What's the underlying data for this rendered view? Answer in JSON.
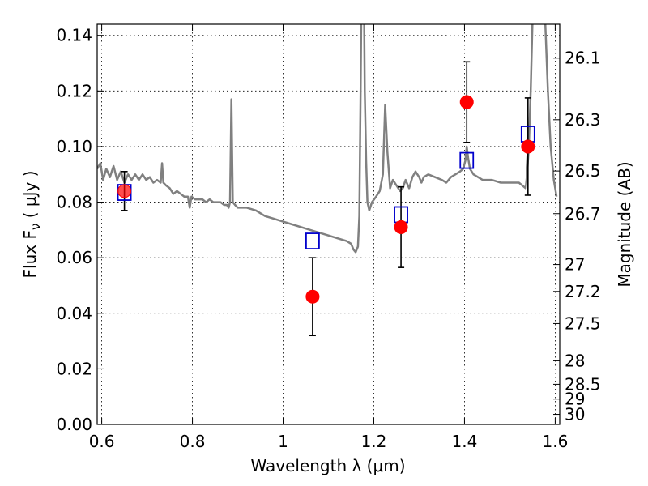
{
  "chart_data": {
    "type": "scatter",
    "xlabel": "Wavelength  λ (μm)",
    "ylabel": "Flux  F",
    "ylabel_sub": "ν",
    "ylabel_unit": "  ( μJy )",
    "y2label": "Magnitude (AB)",
    "xlim": [
      0.59,
      1.61
    ],
    "ylim": [
      0.0,
      0.144
    ],
    "grid": true,
    "x_ticks": [
      {
        "value": 0.6,
        "label": "0.6"
      },
      {
        "value": 0.8,
        "label": "0.8"
      },
      {
        "value": 1.0,
        "label": "1"
      },
      {
        "value": 1.2,
        "label": "1.2"
      },
      {
        "value": 1.4,
        "label": "1.4"
      },
      {
        "value": 1.6,
        "label": "1.6"
      }
    ],
    "y_ticks": [
      {
        "value": 0.0,
        "label": "0.00"
      },
      {
        "value": 0.02,
        "label": "0.02"
      },
      {
        "value": 0.04,
        "label": "0.04"
      },
      {
        "value": 0.06,
        "label": "0.06"
      },
      {
        "value": 0.08,
        "label": "0.08"
      },
      {
        "value": 0.1,
        "label": "0.10"
      },
      {
        "value": 0.12,
        "label": "0.12"
      },
      {
        "value": 0.14,
        "label": "0.14"
      }
    ],
    "y2_ticks": [
      {
        "mag": 26.1,
        "label": "26.1"
      },
      {
        "mag": 26.3,
        "label": "26.3"
      },
      {
        "mag": 26.5,
        "label": "26.5"
      },
      {
        "mag": 26.7,
        "label": "26.7"
      },
      {
        "mag": 27.0,
        "label": "27"
      },
      {
        "mag": 27.2,
        "label": "27.2"
      },
      {
        "mag": 27.5,
        "label": "27.5"
      },
      {
        "mag": 28.0,
        "label": "28"
      },
      {
        "mag": 28.5,
        "label": "28.5"
      },
      {
        "mag": 29.0,
        "label": "29"
      },
      {
        "mag": 30.0,
        "label": "30"
      }
    ],
    "series": [
      {
        "kind": "line",
        "color": "#808080",
        "points": [
          [
            0.59,
            0.092
          ],
          [
            0.597,
            0.094
          ],
          [
            0.603,
            0.088
          ],
          [
            0.61,
            0.092
          ],
          [
            0.618,
            0.089
          ],
          [
            0.626,
            0.093
          ],
          [
            0.634,
            0.088
          ],
          [
            0.642,
            0.091
          ],
          [
            0.65,
            0.087
          ],
          [
            0.658,
            0.09
          ],
          [
            0.666,
            0.088
          ],
          [
            0.674,
            0.09
          ],
          [
            0.682,
            0.088
          ],
          [
            0.69,
            0.09
          ],
          [
            0.698,
            0.088
          ],
          [
            0.706,
            0.089
          ],
          [
            0.714,
            0.087
          ],
          [
            0.722,
            0.088
          ],
          [
            0.73,
            0.087
          ],
          [
            0.733,
            0.094
          ],
          [
            0.736,
            0.087
          ],
          [
            0.742,
            0.086
          ],
          [
            0.75,
            0.085
          ],
          [
            0.758,
            0.083
          ],
          [
            0.766,
            0.084
          ],
          [
            0.774,
            0.083
          ],
          [
            0.782,
            0.082
          ],
          [
            0.79,
            0.082
          ],
          [
            0.794,
            0.078
          ],
          [
            0.798,
            0.082
          ],
          [
            0.806,
            0.081
          ],
          [
            0.814,
            0.081
          ],
          [
            0.822,
            0.081
          ],
          [
            0.83,
            0.08
          ],
          [
            0.838,
            0.081
          ],
          [
            0.846,
            0.08
          ],
          [
            0.854,
            0.08
          ],
          [
            0.862,
            0.08
          ],
          [
            0.87,
            0.079
          ],
          [
            0.876,
            0.079
          ],
          [
            0.88,
            0.078
          ],
          [
            0.883,
            0.08
          ],
          [
            0.886,
            0.117
          ],
          [
            0.889,
            0.08
          ],
          [
            0.894,
            0.079
          ],
          [
            0.9,
            0.078
          ],
          [
            0.92,
            0.078
          ],
          [
            0.94,
            0.077
          ],
          [
            0.96,
            0.075
          ],
          [
            0.98,
            0.074
          ],
          [
            1.0,
            0.073
          ],
          [
            1.02,
            0.072
          ],
          [
            1.04,
            0.071
          ],
          [
            1.06,
            0.07
          ],
          [
            1.08,
            0.069
          ],
          [
            1.1,
            0.068
          ],
          [
            1.12,
            0.067
          ],
          [
            1.14,
            0.066
          ],
          [
            1.15,
            0.065
          ],
          [
            1.155,
            0.063
          ],
          [
            1.16,
            0.062
          ],
          [
            1.165,
            0.064
          ],
          [
            1.168,
            0.075
          ],
          [
            1.171,
            0.12
          ],
          [
            1.173,
            0.16
          ],
          [
            1.178,
            0.16
          ],
          [
            1.18,
            0.12
          ],
          [
            1.183,
            0.095
          ],
          [
            1.186,
            0.08
          ],
          [
            1.19,
            0.077
          ],
          [
            1.196,
            0.08
          ],
          [
            1.205,
            0.082
          ],
          [
            1.213,
            0.084
          ],
          [
            1.22,
            0.09
          ],
          [
            1.225,
            0.115
          ],
          [
            1.23,
            0.098
          ],
          [
            1.236,
            0.085
          ],
          [
            1.242,
            0.088
          ],
          [
            1.25,
            0.086
          ],
          [
            1.258,
            0.084
          ],
          [
            1.264,
            0.085
          ],
          [
            1.27,
            0.088
          ],
          [
            1.278,
            0.085
          ],
          [
            1.285,
            0.089
          ],
          [
            1.292,
            0.091
          ],
          [
            1.3,
            0.089
          ],
          [
            1.305,
            0.087
          ],
          [
            1.31,
            0.089
          ],
          [
            1.32,
            0.09
          ],
          [
            1.335,
            0.089
          ],
          [
            1.35,
            0.088
          ],
          [
            1.36,
            0.087
          ],
          [
            1.37,
            0.089
          ],
          [
            1.38,
            0.09
          ],
          [
            1.39,
            0.091
          ],
          [
            1.397,
            0.092
          ],
          [
            1.402,
            0.095
          ],
          [
            1.405,
            0.1
          ],
          [
            1.408,
            0.096
          ],
          [
            1.412,
            0.092
          ],
          [
            1.42,
            0.09
          ],
          [
            1.43,
            0.089
          ],
          [
            1.44,
            0.088
          ],
          [
            1.46,
            0.088
          ],
          [
            1.48,
            0.087
          ],
          [
            1.5,
            0.087
          ],
          [
            1.52,
            0.087
          ],
          [
            1.535,
            0.085
          ],
          [
            1.538,
            0.09
          ],
          [
            1.542,
            0.1
          ],
          [
            1.546,
            0.12
          ],
          [
            1.55,
            0.145
          ],
          [
            1.553,
            0.16
          ],
          [
            1.575,
            0.16
          ],
          [
            1.578,
            0.145
          ],
          [
            1.584,
            0.12
          ],
          [
            1.59,
            0.1
          ],
          [
            1.597,
            0.088
          ],
          [
            1.603,
            0.082
          ]
        ]
      },
      {
        "kind": "markers",
        "marker": "open-square",
        "color": "#0000cc",
        "points": [
          [
            0.65,
            0.0835
          ],
          [
            1.065,
            0.066
          ],
          [
            1.26,
            0.0755
          ],
          [
            1.405,
            0.095
          ],
          [
            1.54,
            0.1045
          ]
        ]
      },
      {
        "kind": "markers",
        "marker": "filled-circle",
        "color": "#ff0000",
        "points": [
          [
            0.65,
            0.084
          ],
          [
            1.065,
            0.046
          ],
          [
            1.26,
            0.071
          ],
          [
            1.405,
            0.116
          ],
          [
            1.54,
            0.1
          ]
        ],
        "errors": [
          0.007,
          0.014,
          0.0145,
          0.0145,
          0.0175
        ]
      }
    ]
  }
}
